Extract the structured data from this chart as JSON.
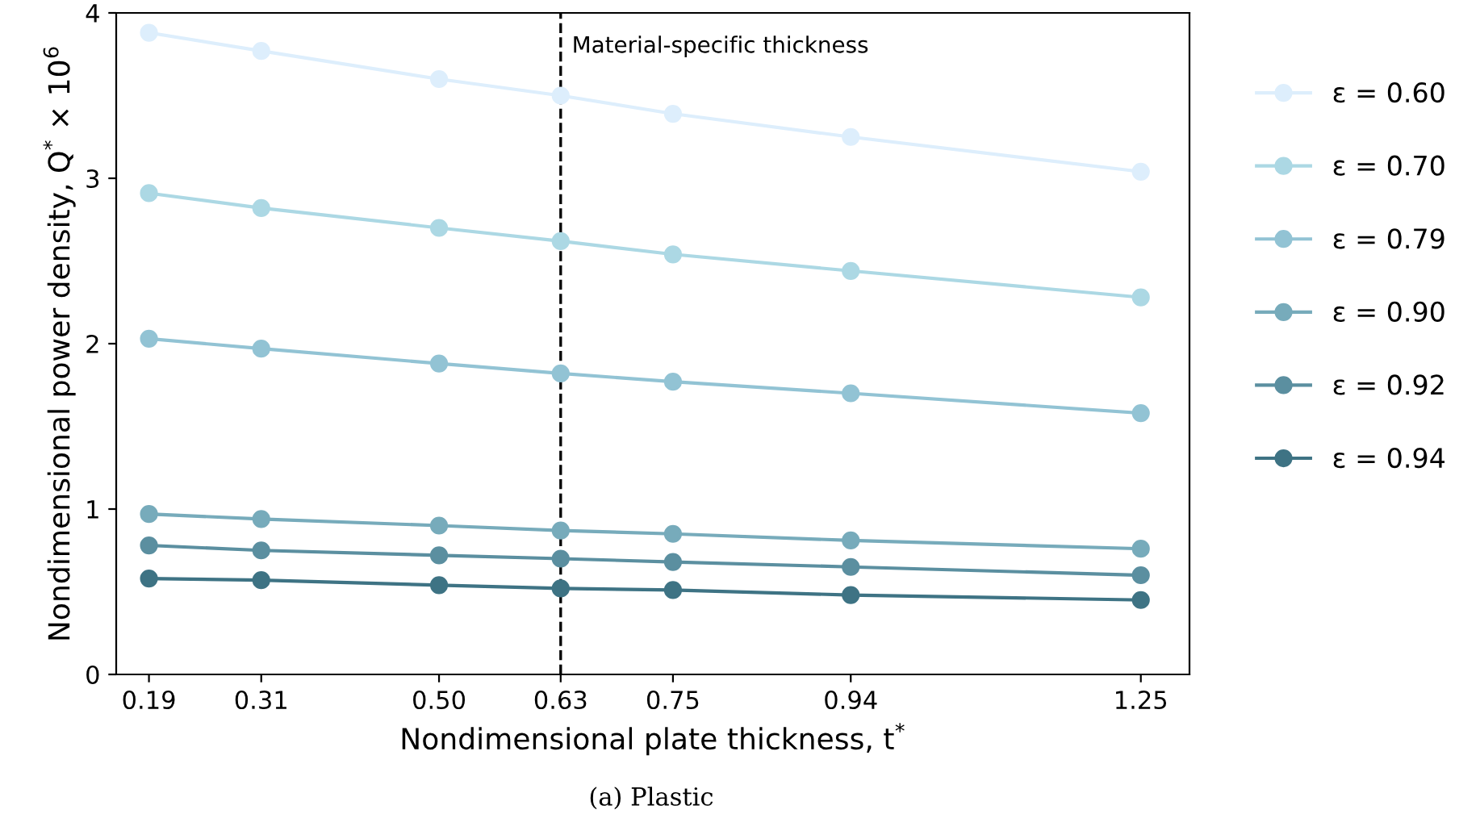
{
  "chart_data": {
    "type": "line",
    "xlabel": "Nondimensional plate thickness, t$^{*}$",
    "ylabel": "Nondimensional power density, Q$^{*}$ × 10$^{6}$",
    "x": [
      0.19,
      0.31,
      0.5,
      0.63,
      0.75,
      0.94,
      1.25
    ],
    "series": [
      {
        "name": "ε = 0.60",
        "color": "#ddeefc",
        "values": [
          3.88,
          3.77,
          3.6,
          3.5,
          3.39,
          3.25,
          3.04
        ]
      },
      {
        "name": "ε = 0.70",
        "color": "#acd8e4",
        "values": [
          2.91,
          2.82,
          2.7,
          2.62,
          2.54,
          2.44,
          2.28
        ]
      },
      {
        "name": "ε = 0.79",
        "color": "#92c3d4",
        "values": [
          2.03,
          1.97,
          1.88,
          1.82,
          1.77,
          1.7,
          1.58
        ]
      },
      {
        "name": "ε = 0.90",
        "color": "#77abbb",
        "values": [
          0.97,
          0.94,
          0.9,
          0.87,
          0.85,
          0.81,
          0.76
        ]
      },
      {
        "name": "ε = 0.92",
        "color": "#5b8fa0",
        "values": [
          0.78,
          0.75,
          0.72,
          0.7,
          0.68,
          0.65,
          0.6
        ]
      },
      {
        "name": "ε = 0.94",
        "color": "#3e7384",
        "values": [
          0.58,
          0.57,
          0.54,
          0.52,
          0.51,
          0.48,
          0.45
        ]
      }
    ],
    "xlim": [
      0.155,
      1.302
    ],
    "xticks": [
      {
        "value": 0.19,
        "label": "0.19"
      },
      {
        "value": 0.31,
        "label": "0.31"
      },
      {
        "value": 0.5,
        "label": "0.50"
      },
      {
        "value": 0.63,
        "label": "0.63"
      },
      {
        "value": 0.75,
        "label": "0.75"
      },
      {
        "value": 0.94,
        "label": "0.94"
      },
      {
        "value": 1.25,
        "label": "1.25"
      }
    ],
    "ylim": [
      0,
      4
    ],
    "yticks": [
      0,
      1,
      2,
      3,
      4
    ],
    "ref_lines": [
      {
        "axis": "x",
        "value": 0.63,
        "label": "Material-specific thickness",
        "color": "#000000",
        "line_style": "dashed"
      }
    ],
    "annotations": [
      "(a) Plastic"
    ],
    "marker": "circle",
    "line_style": "solid",
    "legend": "right",
    "grid": false
  }
}
